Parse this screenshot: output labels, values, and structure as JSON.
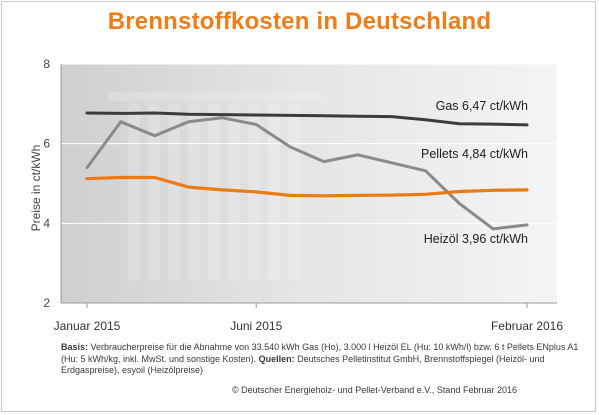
{
  "title": "Brennstoffkosten in Deutschland",
  "chart_data": {
    "type": "line",
    "title": "Brennstoffkosten in Deutschland",
    "xlabel": "",
    "ylabel": "Preise in ct/kWh",
    "x": [
      "2015-01",
      "2015-02",
      "2015-03",
      "2015-04",
      "2015-05",
      "2015-06",
      "2015-07",
      "2015-08",
      "2015-09",
      "2015-10",
      "2015-11",
      "2015-12",
      "2016-01",
      "2016-02"
    ],
    "x_tick_labels": [
      "Januar 2015",
      "Juni 2015",
      "Februar 2016"
    ],
    "x_tick_positions": [
      "2015-01",
      "2015-06",
      "2016-02"
    ],
    "ylim": [
      2,
      8
    ],
    "yticks": [
      2,
      4,
      6,
      8
    ],
    "grid": true,
    "series": [
      {
        "name": "Gas",
        "label": "Gas 6,47 ct/kWh",
        "color": "#3c3c3c",
        "values": [
          6.77,
          6.76,
          6.77,
          6.74,
          6.73,
          6.72,
          6.71,
          6.7,
          6.69,
          6.68,
          6.6,
          6.5,
          6.49,
          6.47
        ]
      },
      {
        "name": "Pellets",
        "label": "Pellets 4,84 ct/kWh",
        "color": "#ec7a12",
        "values": [
          5.12,
          5.15,
          5.15,
          4.91,
          4.84,
          4.79,
          4.7,
          4.69,
          4.7,
          4.71,
          4.73,
          4.8,
          4.83,
          4.84
        ]
      },
      {
        "name": "Heizöl",
        "label": "Heizöl 3,96 ct/kWh",
        "color": "#8a8a8a",
        "values": [
          5.4,
          6.55,
          6.2,
          6.55,
          6.65,
          6.48,
          5.92,
          5.55,
          5.72,
          5.52,
          5.32,
          4.5,
          3.86,
          3.96
        ]
      }
    ]
  },
  "footnote": {
    "basis_label": "Basis:",
    "basis_text": " Verbraucherpreise für die Abnahme von 33.540 kWh Gas (Ho), 3.000 l Heizöl EL (Hu: 10 kWh/l) bzw. 6 t Pellets ENplus A1 (Hu: 5 kWh/kg, inkl. MwSt. und sonstige Kosten).",
    "sources_label": " Quellen:",
    "sources_text": " Deutsches Pelletinstitut GmbH, Brennstoffspiegel (Heizöl- und Erdgaspreise), esyoil (Heizölpreise)"
  },
  "copyright": "© Deutscher Energieholz- und Pellet-Verband e.V., Stand Februar 2016"
}
